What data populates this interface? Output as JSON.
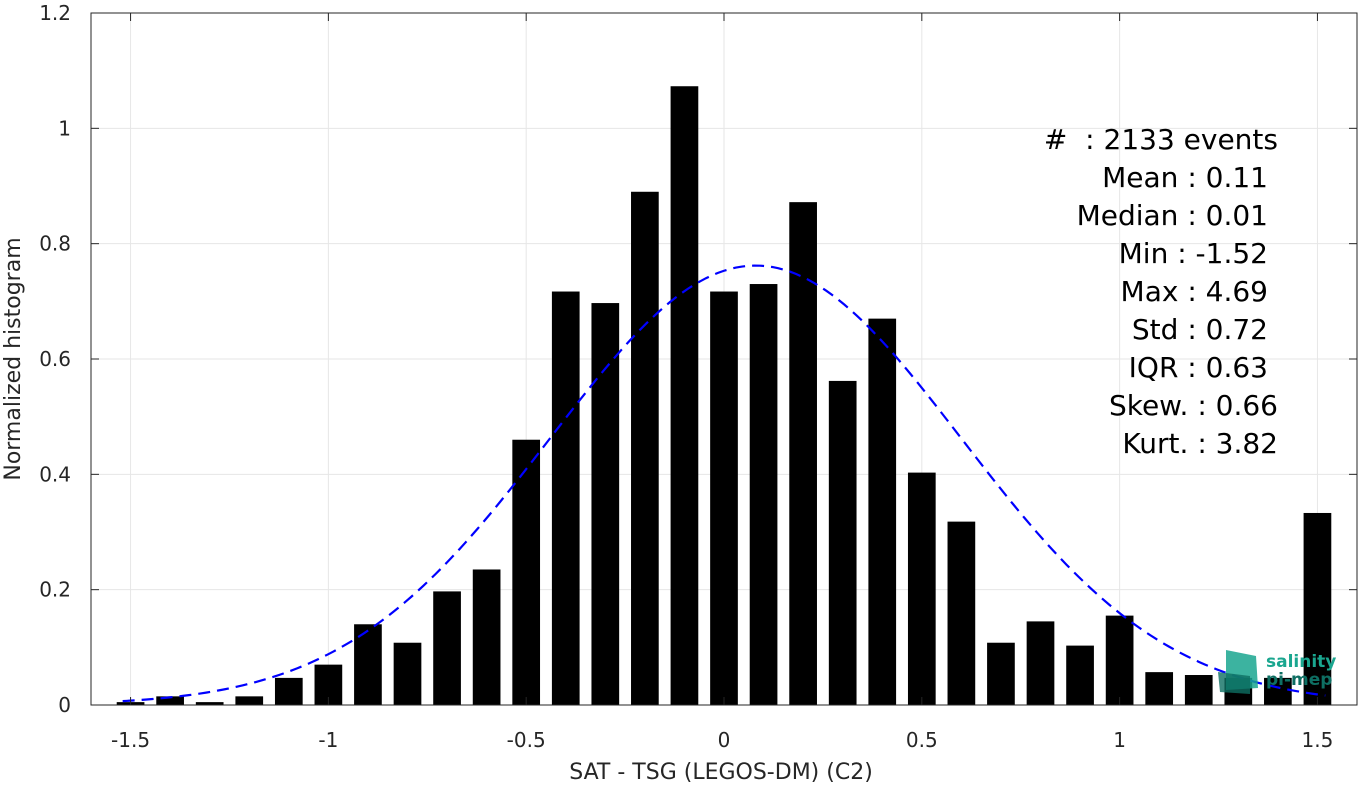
{
  "chart_data": {
    "type": "bar",
    "xlabel": "SAT - TSG (LEGOS-DM) (C2)",
    "ylabel": "Normalized histogram",
    "xlim": [
      -1.6,
      1.6
    ],
    "ylim": [
      0,
      1.2
    ],
    "xticks": [
      -1.5,
      -1,
      -0.5,
      0,
      0.5,
      1,
      1.5
    ],
    "xtick_labels": [
      "-1.5",
      "-1",
      "-0.5",
      "0",
      "0.5",
      "1",
      "1.5"
    ],
    "yticks": [
      0,
      0.2,
      0.4,
      0.6,
      0.8,
      1,
      1.2
    ],
    "ytick_labels": [
      "0",
      "0.2",
      "0.4",
      "0.6",
      "0.8",
      "1",
      "1.2"
    ],
    "grid": true,
    "bar_width": 0.07,
    "bars": {
      "x": [
        -1.5,
        -1.4,
        -1.3,
        -1.2,
        -1.1,
        -1.0,
        -0.9,
        -0.8,
        -0.7,
        -0.6,
        -0.5,
        -0.4,
        -0.3,
        -0.2,
        -0.1,
        0.0,
        0.1,
        0.2,
        0.3,
        0.4,
        0.5,
        0.6,
        0.7,
        0.8,
        0.9,
        1.0,
        1.1,
        1.2,
        1.3,
        1.4,
        1.5
      ],
      "values": [
        0.005,
        0.015,
        0.005,
        0.015,
        0.047,
        0.07,
        0.14,
        0.108,
        0.197,
        0.235,
        0.46,
        0.717,
        0.697,
        0.89,
        1.073,
        0.717,
        0.73,
        0.872,
        0.562,
        0.67,
        0.403,
        0.318,
        0.108,
        0.145,
        0.103,
        0.155,
        0.057,
        0.052,
        0.047,
        0.047,
        0.333
      ],
      "color": "#000000"
    },
    "fit": {
      "type": "normal",
      "mean": 0.08,
      "std": 0.52,
      "amplitude": 0.762,
      "x_range": [
        -1.52,
        1.52
      ],
      "color": "#0000ff",
      "style": "dashed"
    }
  },
  "stats": [
    {
      "label": "#  : 2133 events"
    },
    {
      "label": "Mean : 0.11"
    },
    {
      "label": "Median : 0.01"
    },
    {
      "label": "Min : -1.52"
    },
    {
      "label": "Max : 4.69"
    },
    {
      "label": "Std : 0.72"
    },
    {
      "label": "IQR : 0.63"
    },
    {
      "label": "Skew. : 0.66"
    },
    {
      "label": "Kurt. : 3.82"
    }
  ],
  "logo": {
    "line1": "salinity",
    "line2": "pi-mep",
    "color": "#1aa68f",
    "color2": "#0e6f63"
  }
}
